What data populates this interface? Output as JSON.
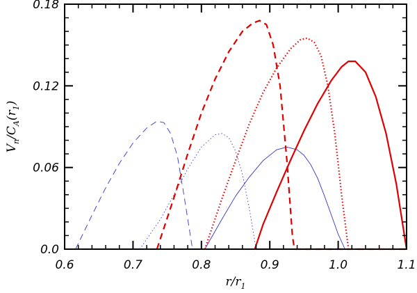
{
  "chart_data": {
    "type": "line",
    "xlabel": "r/r",
    "xlabel_subscript": "1",
    "ylabel": "V",
    "ylabel_subscript_n": "n",
    "ylabel_mid": "/C",
    "ylabel_subscript_A": "A",
    "ylabel_paren_open": "(r",
    "ylabel_subscript_1": "1",
    "ylabel_paren_close": ")",
    "xlim": [
      0.6,
      1.1
    ],
    "ylim": [
      0.0,
      0.18
    ],
    "xticks": [
      {
        "value": 0.6,
        "label": "0.6"
      },
      {
        "value": 0.7,
        "label": "0.7"
      },
      {
        "value": 0.8,
        "label": "0.8"
      },
      {
        "value": 0.9,
        "label": "0.9"
      },
      {
        "value": 1.0,
        "label": "1.0"
      },
      {
        "value": 1.1,
        "label": "1.1"
      }
    ],
    "yticks": [
      {
        "value": 0.0,
        "label": "0.0"
      },
      {
        "value": 0.06,
        "label": "0.06"
      },
      {
        "value": 0.12,
        "label": "0.12"
      },
      {
        "value": 0.18,
        "label": "0.18"
      }
    ],
    "grid": false,
    "series": [
      {
        "color": "#3333cc",
        "dash": "dashed",
        "width": 0.9,
        "x": [
          0.616,
          0.64,
          0.66,
          0.68,
          0.7,
          0.72,
          0.735,
          0.745,
          0.755,
          0.765,
          0.775,
          0.787
        ],
        "y": [
          0.0,
          0.025,
          0.045,
          0.063,
          0.078,
          0.089,
          0.094,
          0.093,
          0.085,
          0.068,
          0.038,
          0.0
        ]
      },
      {
        "color": "#3333cc",
        "dash": "dotted",
        "width": 0.9,
        "x": [
          0.71,
          0.74,
          0.76,
          0.78,
          0.8,
          0.82,
          0.83,
          0.84,
          0.85,
          0.86,
          0.87,
          0.88
        ],
        "y": [
          0.0,
          0.022,
          0.04,
          0.059,
          0.075,
          0.084,
          0.085,
          0.082,
          0.072,
          0.055,
          0.03,
          0.0
        ]
      },
      {
        "color": "#3333cc",
        "dash": "solid",
        "width": 0.9,
        "x": [
          0.805,
          0.83,
          0.85,
          0.87,
          0.89,
          0.91,
          0.925,
          0.94,
          0.95,
          0.96,
          0.97,
          0.98,
          0.99,
          1.0,
          1.01
        ],
        "y": [
          0.0,
          0.022,
          0.039,
          0.053,
          0.065,
          0.073,
          0.075,
          0.073,
          0.069,
          0.062,
          0.052,
          0.039,
          0.025,
          0.011,
          0.0
        ]
      },
      {
        "color": "#dd0000",
        "dash": "dashed",
        "width": 2.2,
        "x": [
          0.735,
          0.76,
          0.78,
          0.8,
          0.82,
          0.84,
          0.86,
          0.875,
          0.885,
          0.895,
          0.905,
          0.915,
          0.925,
          0.933,
          0.936,
          1.0,
          1.1
        ],
        "y": [
          0.0,
          0.038,
          0.07,
          0.1,
          0.125,
          0.145,
          0.16,
          0.166,
          0.168,
          0.165,
          0.15,
          0.12,
          0.065,
          0.01,
          0.0,
          0.0,
          0.0
        ]
      },
      {
        "color": "#dd0000",
        "dash": "dotted",
        "width": 2.2,
        "x": [
          0.805,
          0.83,
          0.85,
          0.87,
          0.89,
          0.91,
          0.93,
          0.945,
          0.955,
          0.965,
          0.975,
          0.985,
          0.995,
          1.005,
          1.015
        ],
        "y": [
          0.0,
          0.037,
          0.065,
          0.092,
          0.115,
          0.133,
          0.147,
          0.154,
          0.155,
          0.152,
          0.142,
          0.12,
          0.085,
          0.04,
          0.0
        ]
      },
      {
        "color": "#dd0000",
        "dash": "solid",
        "width": 2.2,
        "x": [
          0.878,
          0.89,
          0.91,
          0.93,
          0.95,
          0.97,
          0.99,
          1.005,
          1.015,
          1.025,
          1.04,
          1.055,
          1.07,
          1.085,
          1.1
        ],
        "y": [
          0.0,
          0.018,
          0.042,
          0.065,
          0.087,
          0.107,
          0.124,
          0.134,
          0.138,
          0.138,
          0.13,
          0.112,
          0.085,
          0.048,
          0.0
        ]
      }
    ]
  }
}
